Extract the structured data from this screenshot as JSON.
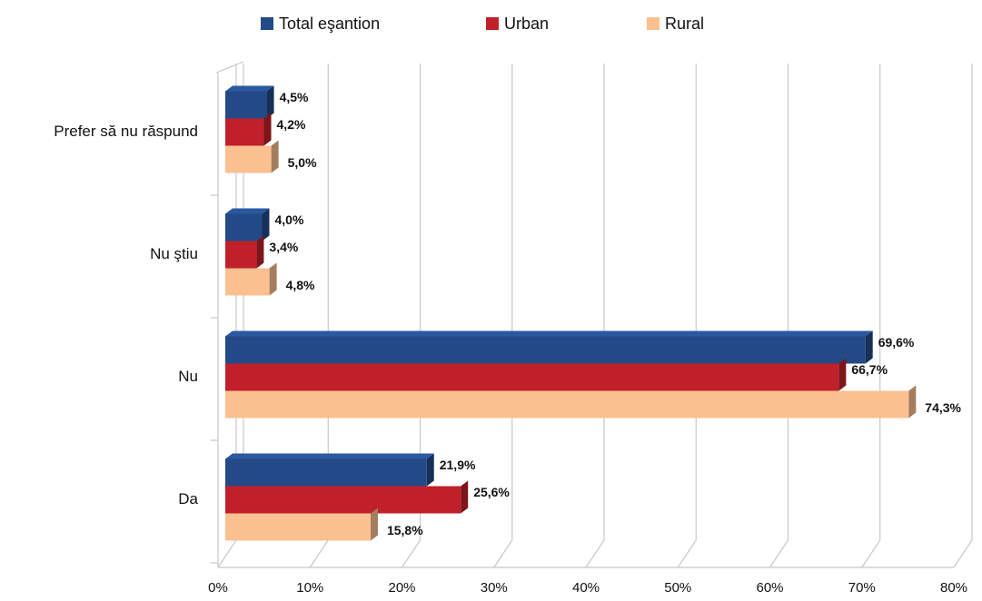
{
  "chart_data": {
    "type": "bar",
    "orientation": "horizontal",
    "categories": [
      "Prefer să nu răspund",
      "Nu ştiu",
      "Nu",
      "Da"
    ],
    "series": [
      {
        "name": "Total eşantion",
        "color": "#234a87",
        "values": [
          4.5,
          4.0,
          69.6,
          21.9
        ],
        "value_labels": [
          "4,5%",
          "4,0%",
          "69,6%",
          "21,9%"
        ]
      },
      {
        "name": "Urban",
        "color": "#c0202a",
        "values": [
          4.2,
          3.4,
          66.7,
          25.6
        ],
        "value_labels": [
          "4,2%",
          "3,4%",
          "66,7%",
          "25,6%"
        ]
      },
      {
        "name": "Rural",
        "color": "#fac090",
        "values": [
          5.0,
          4.8,
          74.3,
          15.8
        ],
        "value_labels": [
          "5,0%",
          "4,8%",
          "74,3%",
          "15,8%"
        ]
      }
    ],
    "xlim": [
      0,
      80
    ],
    "xticks": [
      {
        "value": 0,
        "label": "0%"
      },
      {
        "value": 10,
        "label": "10%"
      },
      {
        "value": 20,
        "label": "20%"
      },
      {
        "value": 30,
        "label": "30%"
      },
      {
        "value": 40,
        "label": "40%"
      },
      {
        "value": 50,
        "label": "50%"
      },
      {
        "value": 60,
        "label": "60%"
      },
      {
        "value": 70,
        "label": "70%"
      },
      {
        "value": 80,
        "label": "80%"
      }
    ],
    "grid": true,
    "legend": "top"
  }
}
